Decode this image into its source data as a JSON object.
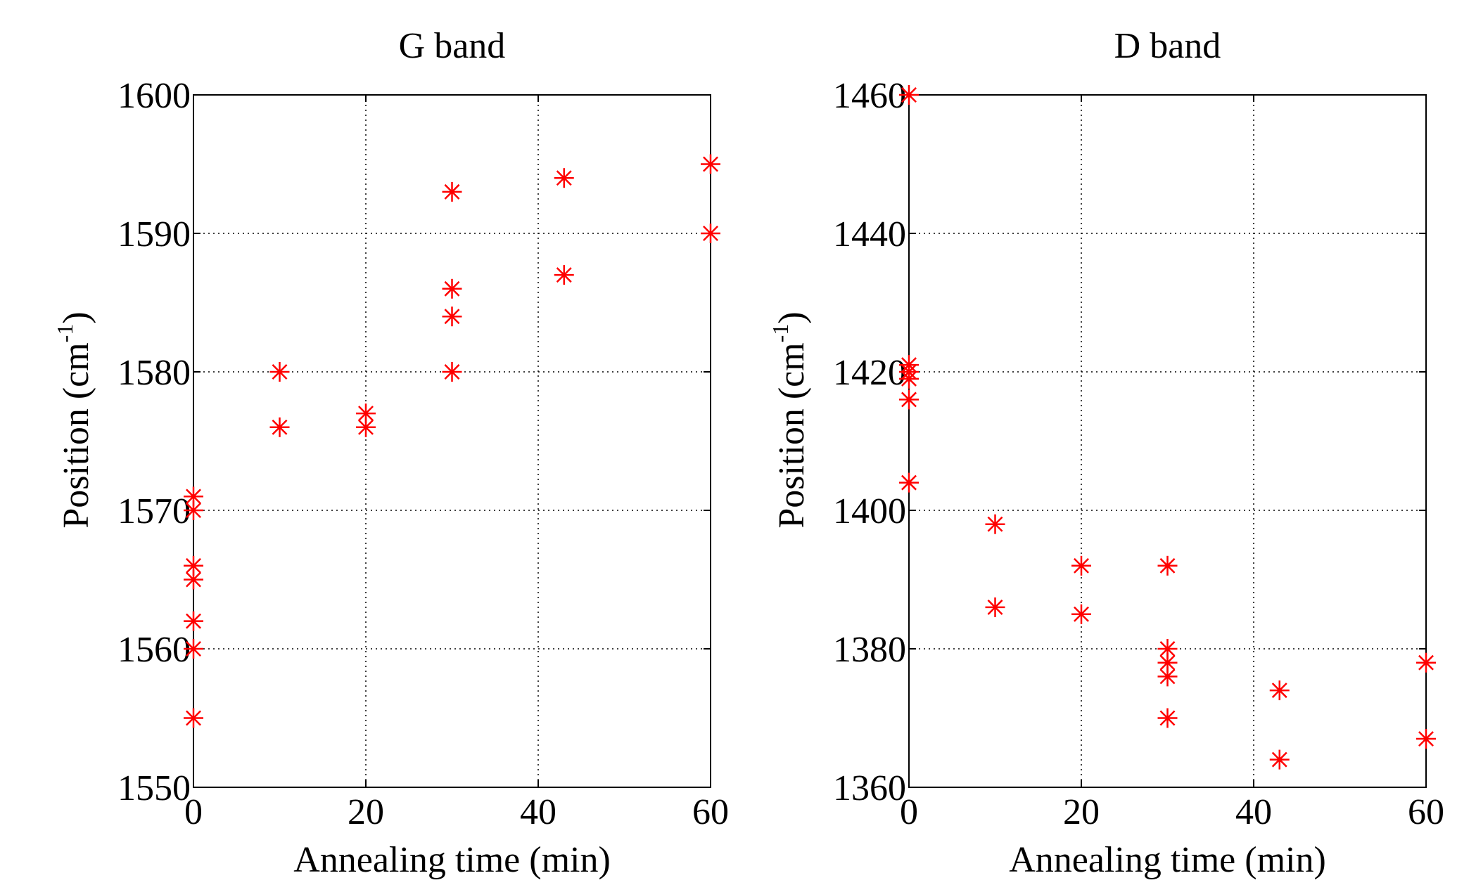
{
  "chart_data": [
    {
      "type": "scatter",
      "title": "G band",
      "xlabel": "Annealing time (min)",
      "ylabel_main": "Position (cm",
      "ylabel_sup": "-1",
      "ylabel_close": ")",
      "xlim": [
        0,
        60
      ],
      "ylim": [
        1550,
        1600
      ],
      "xticks": [
        0,
        20,
        40,
        60
      ],
      "yticks": [
        1550,
        1560,
        1570,
        1580,
        1590,
        1600
      ],
      "grid": true,
      "marker": "asterisk",
      "color": "#ff0000",
      "points": [
        {
          "x": 0,
          "y": 1555
        },
        {
          "x": 0,
          "y": 1560
        },
        {
          "x": 0,
          "y": 1562
        },
        {
          "x": 0,
          "y": 1565
        },
        {
          "x": 0,
          "y": 1566
        },
        {
          "x": 0,
          "y": 1570
        },
        {
          "x": 0,
          "y": 1571
        },
        {
          "x": 10,
          "y": 1576
        },
        {
          "x": 10,
          "y": 1580
        },
        {
          "x": 20,
          "y": 1576
        },
        {
          "x": 20,
          "y": 1577
        },
        {
          "x": 30,
          "y": 1580
        },
        {
          "x": 30,
          "y": 1584
        },
        {
          "x": 30,
          "y": 1586
        },
        {
          "x": 30,
          "y": 1593
        },
        {
          "x": 43,
          "y": 1587
        },
        {
          "x": 43,
          "y": 1594
        },
        {
          "x": 60,
          "y": 1590
        },
        {
          "x": 60,
          "y": 1595
        }
      ]
    },
    {
      "type": "scatter",
      "title": "D band",
      "xlabel": "Annealing time (min)",
      "ylabel_main": "Position (cm",
      "ylabel_sup": "-1",
      "ylabel_close": ")",
      "xlim": [
        0,
        60
      ],
      "ylim": [
        1360,
        1460
      ],
      "xticks": [
        0,
        20,
        40,
        60
      ],
      "yticks": [
        1360,
        1380,
        1400,
        1420,
        1440,
        1460
      ],
      "grid": true,
      "marker": "asterisk",
      "color": "#ff0000",
      "points": [
        {
          "x": 0,
          "y": 1460
        },
        {
          "x": 0,
          "y": 1421
        },
        {
          "x": 0,
          "y": 1420
        },
        {
          "x": 0,
          "y": 1419
        },
        {
          "x": 0,
          "y": 1416
        },
        {
          "x": 0,
          "y": 1404
        },
        {
          "x": 10,
          "y": 1398
        },
        {
          "x": 10,
          "y": 1386
        },
        {
          "x": 20,
          "y": 1392
        },
        {
          "x": 20,
          "y": 1385
        },
        {
          "x": 30,
          "y": 1392
        },
        {
          "x": 30,
          "y": 1380
        },
        {
          "x": 30,
          "y": 1378
        },
        {
          "x": 30,
          "y": 1376
        },
        {
          "x": 30,
          "y": 1370
        },
        {
          "x": 43,
          "y": 1374
        },
        {
          "x": 43,
          "y": 1364
        },
        {
          "x": 60,
          "y": 1378
        },
        {
          "x": 60,
          "y": 1367
        }
      ]
    }
  ]
}
